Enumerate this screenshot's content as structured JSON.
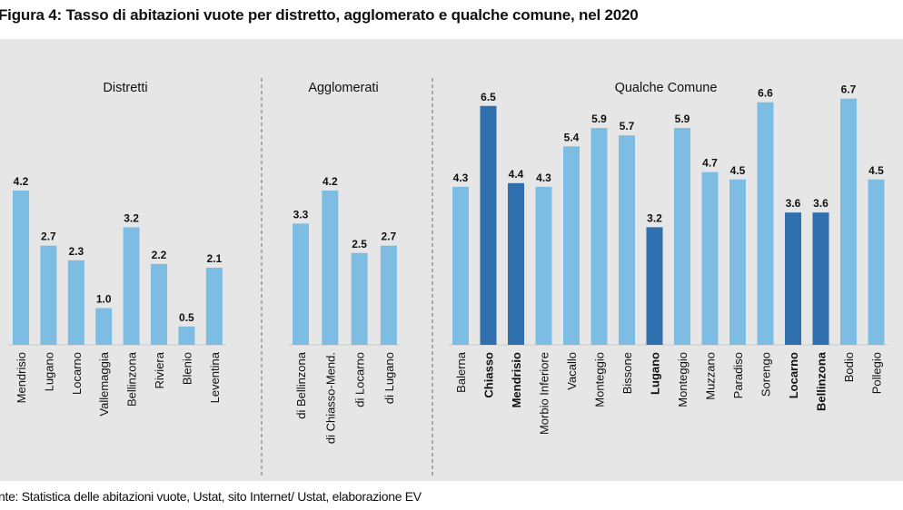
{
  "title": "Figura 4: Tasso di abitazioni vuote per distretto, agglomerato e qualche comune, nel 2020",
  "source": "nte: Statistica delle abitazioni vuote, Ustat, sito Internet/ Ustat, elaborazione EV",
  "colors": {
    "light": "#7ebde3",
    "dark": "#2f6fad",
    "panel": "#e6e6e6",
    "text": "#111111"
  },
  "chart_data": [
    {
      "type": "bar",
      "title": "Distretti",
      "categories": [
        "Mendrisio",
        "Lugano",
        "Locarno",
        "Vallemaggia",
        "Bellinzona",
        "Riviera",
        "Blenio",
        "Leventina"
      ],
      "values": [
        4.2,
        2.7,
        2.3,
        1.0,
        3.2,
        2.2,
        0.5,
        2.1
      ],
      "labels": [
        "4.2",
        "2.7",
        "2.3",
        "1.0",
        "3.2",
        "2.2",
        "0.5",
        "2.1"
      ],
      "highlight": [
        false,
        false,
        false,
        false,
        false,
        false,
        false,
        false
      ]
    },
    {
      "type": "bar",
      "title": "Agglomerati",
      "categories": [
        "di Bellinzona",
        "di Chiasso-Mend.",
        "di Locarno",
        "di Lugano"
      ],
      "values": [
        3.3,
        4.2,
        2.5,
        2.7
      ],
      "labels": [
        "3.3",
        "4.2",
        "2.5",
        "2.7"
      ],
      "highlight": [
        false,
        false,
        false,
        false
      ]
    },
    {
      "type": "bar",
      "title": "Qualche Comune",
      "categories": [
        "Balerna",
        "Chiasso",
        "Mendrisio",
        "Morbio Inferiore",
        "Vacallo",
        "Monteggio",
        "Bissone",
        "Lugano",
        "Monteggio",
        "Muzzano",
        "Paradiso",
        "Sorengo",
        "Locarno",
        "Bellinzona",
        "Bodio",
        "Pollegio"
      ],
      "values": [
        4.3,
        6.5,
        4.4,
        4.3,
        5.4,
        5.9,
        5.7,
        3.2,
        5.9,
        4.7,
        4.5,
        6.6,
        3.6,
        3.6,
        6.7,
        4.5
      ],
      "labels": [
        "4.3",
        "6.5",
        "4.4",
        "4.3",
        "5.4",
        "5.9",
        "5.7",
        "3.2",
        "5.9",
        "4.7",
        "4.5",
        "6.6",
        "3.6",
        "3.6",
        "6.7",
        "4.5"
      ],
      "highlight": [
        false,
        true,
        true,
        false,
        false,
        false,
        false,
        true,
        false,
        false,
        false,
        false,
        true,
        true,
        false,
        false
      ]
    }
  ]
}
